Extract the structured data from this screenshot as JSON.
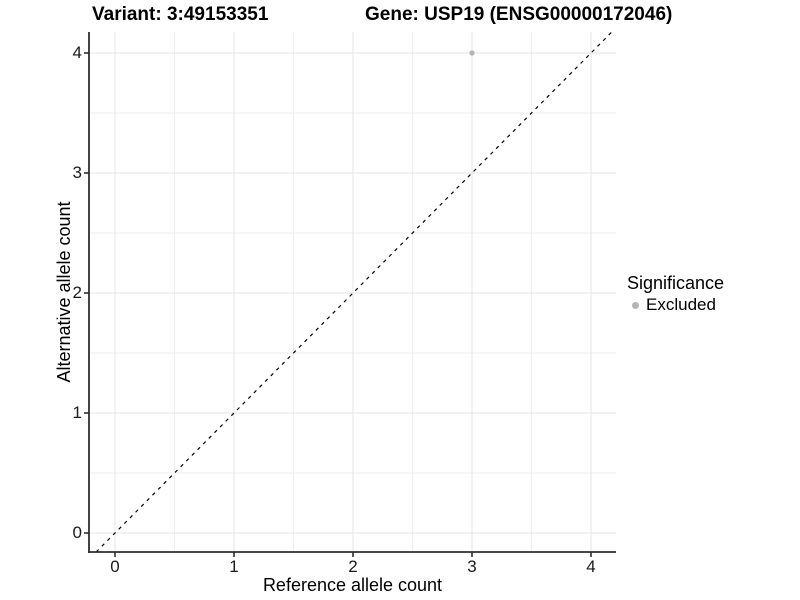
{
  "titles": {
    "variant": "Variant: 3:49153351",
    "gene": "Gene: USP19 (ENSG00000172046)"
  },
  "axes": {
    "x": {
      "label": "Reference allele count",
      "ticks": [
        "0",
        "1",
        "2",
        "3",
        "4"
      ]
    },
    "y": {
      "label": "Alternative allele count",
      "ticks": [
        "0",
        "1",
        "2",
        "3",
        "4"
      ]
    }
  },
  "legend": {
    "title": "Significance",
    "items": [
      {
        "label": "Excluded",
        "color": "#b5b5b5"
      }
    ]
  },
  "colors": {
    "grid_major": "#e4e4e4",
    "grid_minor": "#eeeeee",
    "axis_line": "#2e2e2e",
    "tick_mark": "#2e2e2e",
    "point": "#b5b5b5",
    "reference_line": "#000000"
  },
  "chart_data": {
    "type": "scatter",
    "title": "Variant: 3:49153351 — Gene: USP19 (ENSG00000172046)",
    "xlabel": "Reference allele count",
    "ylabel": "Alternative allele count",
    "xlim": [
      0,
      4
    ],
    "ylim": [
      0,
      4
    ],
    "x_ticks": [
      0,
      1,
      2,
      3,
      4
    ],
    "y_ticks": [
      0,
      1,
      2,
      3,
      4
    ],
    "minor_grid_step": 0.5,
    "grid": "on",
    "legend_position": "right",
    "series": [
      {
        "name": "Excluded",
        "color": "#b5b5b5",
        "points": [
          {
            "x": 3,
            "y": 4
          }
        ]
      }
    ],
    "reference_line": {
      "kind": "identity",
      "linetype": "dashed",
      "color": "#000000"
    }
  }
}
